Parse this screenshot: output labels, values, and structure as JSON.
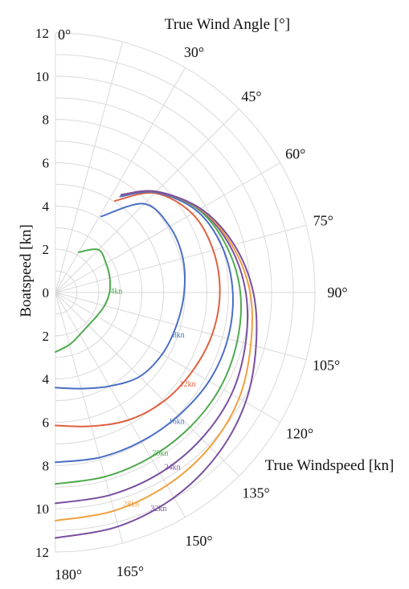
{
  "chart_data": {
    "type": "polar-line",
    "title": "True Wind Angle [°]",
    "radial_label": "Boatspeed [kn]",
    "legend_title": "True Windspeed [kn]",
    "radial_range": [
      0,
      12
    ],
    "radial_ticks": [
      0,
      2,
      4,
      6,
      8,
      10,
      12
    ],
    "radial_tick_labels": [
      "0",
      "2",
      "4",
      "6",
      "8",
      "10",
      "12"
    ],
    "angle_ticks": [
      0,
      30,
      45,
      60,
      75,
      90,
      105,
      120,
      135,
      150,
      165,
      180
    ],
    "angle_tick_labels": [
      "0°",
      "30°",
      "45°",
      "60°",
      "75°",
      "90°",
      "105°",
      "120°",
      "135°",
      "150°",
      "165°",
      "180°"
    ],
    "grid": true,
    "series": [
      {
        "name": "4kn",
        "color": "#4faa4f",
        "points": [
          [
            30,
            2.15
          ],
          [
            45,
            2.8
          ],
          [
            60,
            2.7
          ],
          [
            75,
            2.6
          ],
          [
            90,
            2.5
          ],
          [
            105,
            2.35
          ],
          [
            120,
            2.2
          ],
          [
            135,
            2.15
          ],
          [
            150,
            2.25
          ],
          [
            165,
            2.5
          ],
          [
            180,
            2.75
          ]
        ]
      },
      {
        "name": "8kn",
        "color": "#4a6fc4",
        "points": [
          [
            31,
            4.1
          ],
          [
            45,
            5.8
          ],
          [
            60,
            6.1
          ],
          [
            75,
            6.1
          ],
          [
            90,
            5.95
          ],
          [
            105,
            5.8
          ],
          [
            120,
            5.7
          ],
          [
            135,
            5.5
          ],
          [
            150,
            5.0
          ],
          [
            165,
            4.6
          ],
          [
            180,
            4.4
          ]
        ]
      },
      {
        "name": "12kn",
        "color": "#e06040",
        "points": [
          [
            33,
            5.05
          ],
          [
            45,
            6.5
          ],
          [
            60,
            7.3
          ],
          [
            75,
            7.55
          ],
          [
            90,
            7.6
          ],
          [
            105,
            7.5
          ],
          [
            120,
            7.3
          ],
          [
            135,
            7.1
          ],
          [
            150,
            6.8
          ],
          [
            165,
            6.4
          ],
          [
            180,
            6.15
          ]
        ]
      },
      {
        "name": "16kn",
        "color": "#4a6fc4",
        "points": [
          [
            34,
            5.35
          ],
          [
            45,
            6.55
          ],
          [
            60,
            7.55
          ],
          [
            75,
            8.0
          ],
          [
            90,
            8.2
          ],
          [
            105,
            8.25
          ],
          [
            120,
            8.2
          ],
          [
            135,
            8.05
          ],
          [
            150,
            7.95
          ],
          [
            165,
            7.9
          ],
          [
            180,
            7.85
          ]
        ]
      },
      {
        "name": "20kn",
        "color": "#4faa4f",
        "points": [
          [
            34,
            5.45
          ],
          [
            45,
            6.6
          ],
          [
            60,
            7.65
          ],
          [
            75,
            8.2
          ],
          [
            90,
            8.55
          ],
          [
            105,
            8.7
          ],
          [
            120,
            8.8
          ],
          [
            135,
            8.8
          ],
          [
            150,
            8.8
          ],
          [
            165,
            8.82
          ],
          [
            180,
            8.85
          ]
        ]
      },
      {
        "name": "24kn",
        "color": "#7a4fa0",
        "points": [
          [
            34,
            5.45
          ],
          [
            45,
            6.6
          ],
          [
            60,
            7.7
          ],
          [
            75,
            8.35
          ],
          [
            90,
            8.8
          ],
          [
            105,
            9.1
          ],
          [
            120,
            9.4
          ],
          [
            135,
            9.55
          ],
          [
            150,
            9.65
          ],
          [
            165,
            9.7
          ],
          [
            180,
            9.75
          ]
        ]
      },
      {
        "name": "28kn",
        "color": "#f0a040",
        "points": [
          [
            34,
            5.45
          ],
          [
            45,
            6.6
          ],
          [
            60,
            7.72
          ],
          [
            75,
            8.45
          ],
          [
            90,
            9.0
          ],
          [
            105,
            9.35
          ],
          [
            120,
            9.8
          ],
          [
            135,
            10.1
          ],
          [
            150,
            10.3
          ],
          [
            165,
            10.45
          ],
          [
            180,
            10.55
          ]
        ]
      },
      {
        "name": "32kn",
        "color": "#7a4fa0",
        "points": [
          [
            34,
            5.45
          ],
          [
            45,
            6.6
          ],
          [
            60,
            7.75
          ],
          [
            75,
            8.55
          ],
          [
            90,
            9.15
          ],
          [
            105,
            9.6
          ],
          [
            120,
            10.15
          ],
          [
            135,
            10.6
          ],
          [
            150,
            10.95
          ],
          [
            165,
            11.2
          ],
          [
            180,
            11.35
          ]
        ]
      }
    ]
  }
}
